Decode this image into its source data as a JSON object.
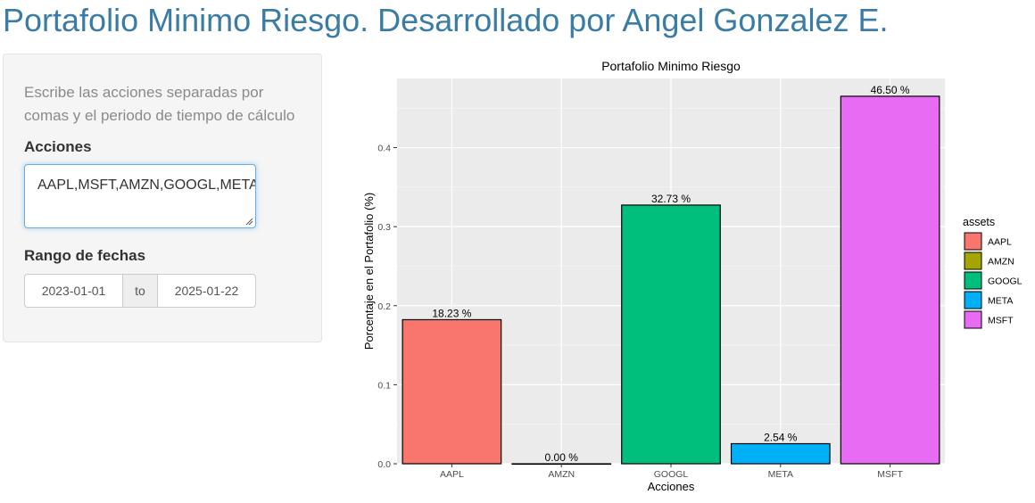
{
  "app": {
    "title": "Portafolio Minimo Riesgo. Desarrollado por Angel Gonzalez E."
  },
  "sidebar": {
    "help_text": "Escribe las acciones separadas por comas y el periodo de tiempo de cálculo",
    "tickers_label": "Acciones",
    "tickers_value": "AAPL,MSFT,AMZN,GOOGL,META",
    "dates_label": "Rango de fechas",
    "date_start": "2023-01-01",
    "date_sep": "to",
    "date_end": "2025-01-22"
  },
  "chart_data": {
    "type": "bar",
    "title": "Portafolio Minimo Riesgo",
    "xlabel": "Acciones",
    "ylabel": "Porcentaje en el Portafolio (%)",
    "categories": [
      "AAPL",
      "AMZN",
      "GOOGL",
      "META",
      "MSFT"
    ],
    "values": [
      0.1823,
      0.0,
      0.3273,
      0.0254,
      0.465
    ],
    "data_labels": [
      "18.23 %",
      "0.00 %",
      "32.73 %",
      "2.54 %",
      "46.50 %"
    ],
    "colors": [
      "#F8766D",
      "#A3A500",
      "#00BF7D",
      "#00B0F6",
      "#E76BF3"
    ],
    "ylim": [
      0,
      0.4875
    ],
    "yticks": [
      0.0,
      0.1,
      0.2,
      0.3,
      0.4
    ],
    "ytick_labels": [
      "0.0",
      "0.1",
      "0.2",
      "0.3",
      "0.4"
    ],
    "grid": true,
    "legend": {
      "title": "assets",
      "position": "right",
      "entries": [
        "AAPL",
        "AMZN",
        "GOOGL",
        "META",
        "MSFT"
      ]
    }
  }
}
